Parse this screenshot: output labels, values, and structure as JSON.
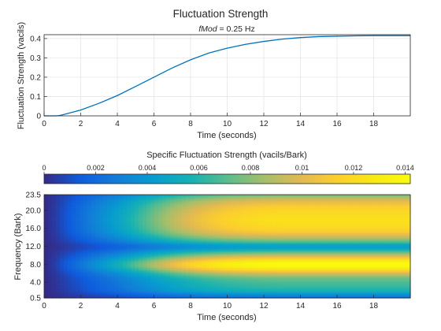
{
  "chart_data": [
    {
      "type": "line",
      "title": "Fluctuation Strength",
      "subtitle_italic": "fMod",
      "subtitle_rest": " = 0.25 Hz",
      "xlabel": "Time (seconds)",
      "ylabel": "Fluctuation Strength (vacils)",
      "xlim": [
        0,
        20
      ],
      "ylim": [
        0,
        0.42
      ],
      "xticks": [
        0,
        2,
        4,
        6,
        8,
        10,
        12,
        14,
        16,
        18
      ],
      "xtick_labels": [
        "0",
        "2",
        "4",
        "6",
        "8",
        "10",
        "12",
        "14",
        "16",
        "18"
      ],
      "yticks": [
        0,
        0.1,
        0.2,
        0.3,
        0.4
      ],
      "ytick_labels": [
        "0",
        "0.1",
        "0.2",
        "0.3",
        "0.4"
      ],
      "grid": true,
      "series": [
        {
          "color": "#0072BD",
          "x": [
            0,
            0.6,
            0.8,
            1,
            2,
            3,
            4,
            5,
            6,
            7,
            8,
            9,
            10,
            11,
            12,
            13,
            14,
            15,
            16,
            17,
            18,
            19,
            20
          ],
          "y": [
            0,
            0,
            0.001,
            0.005,
            0.03,
            0.065,
            0.105,
            0.152,
            0.2,
            0.248,
            0.29,
            0.325,
            0.35,
            0.37,
            0.385,
            0.397,
            0.405,
            0.41,
            0.412,
            0.414,
            0.415,
            0.415,
            0.415
          ]
        }
      ]
    },
    {
      "type": "heatmap",
      "colorbar_label": "Specific Fluctuation Strength (vacils/Bark)",
      "colorbar_ticks": [
        0,
        0.002,
        0.004,
        0.006,
        0.008,
        0.01,
        0.012,
        0.014
      ],
      "colorbar_tick_labels": [
        "0",
        "0.002",
        "0.004",
        "0.006",
        "0.008",
        "0.01",
        "0.012",
        "0.014"
      ],
      "colorbar_range": [
        0,
        0.0142
      ],
      "colormap": "parula",
      "xlabel": "Time (seconds)",
      "ylabel": "Frequency (Bark)",
      "xlim": [
        0,
        20
      ],
      "ylim": [
        0.5,
        23.5
      ],
      "xticks": [
        0,
        2,
        4,
        6,
        8,
        10,
        12,
        14,
        16,
        18
      ],
      "xtick_labels": [
        "0",
        "2",
        "4",
        "6",
        "8",
        "10",
        "12",
        "14",
        "16",
        "18"
      ],
      "yticks": [
        0.5,
        4,
        8,
        12,
        16,
        20,
        23.5
      ],
      "ytick_labels": [
        "0.5",
        "4.0",
        "8.0",
        "12.0",
        "16.0",
        "20.0",
        "23.5"
      ],
      "band_profile": {
        "frequency_bark": [
          0.5,
          1,
          1.5,
          2,
          3,
          4,
          5,
          6,
          7,
          7.5,
          8,
          8.5,
          9,
          10,
          11,
          11.5,
          12,
          12.5,
          13,
          14,
          15,
          16,
          17,
          18,
          19,
          20,
          21,
          22,
          23,
          23.5
        ],
        "peak_value": [
          0.002,
          0.003,
          0.004,
          0.0055,
          0.0063,
          0.0068,
          0.0075,
          0.0095,
          0.0125,
          0.0138,
          0.0142,
          0.0138,
          0.0125,
          0.0095,
          0.0065,
          0.005,
          0.0045,
          0.005,
          0.0068,
          0.009,
          0.0108,
          0.0118,
          0.0122,
          0.0124,
          0.0122,
          0.0118,
          0.0112,
          0.0102,
          0.0088,
          0.0075
        ]
      },
      "time_envelope": {
        "time_s": [
          0,
          0.6,
          1,
          2,
          3,
          4,
          5,
          6,
          7,
          8,
          9,
          10,
          11,
          12,
          13,
          14,
          15,
          16,
          18,
          20
        ],
        "fraction_of_peak": [
          0,
          0.04,
          0.08,
          0.18,
          0.28,
          0.38,
          0.5,
          0.62,
          0.73,
          0.82,
          0.89,
          0.94,
          0.97,
          0.99,
          1,
          1,
          1,
          1,
          1,
          1
        ]
      }
    }
  ]
}
